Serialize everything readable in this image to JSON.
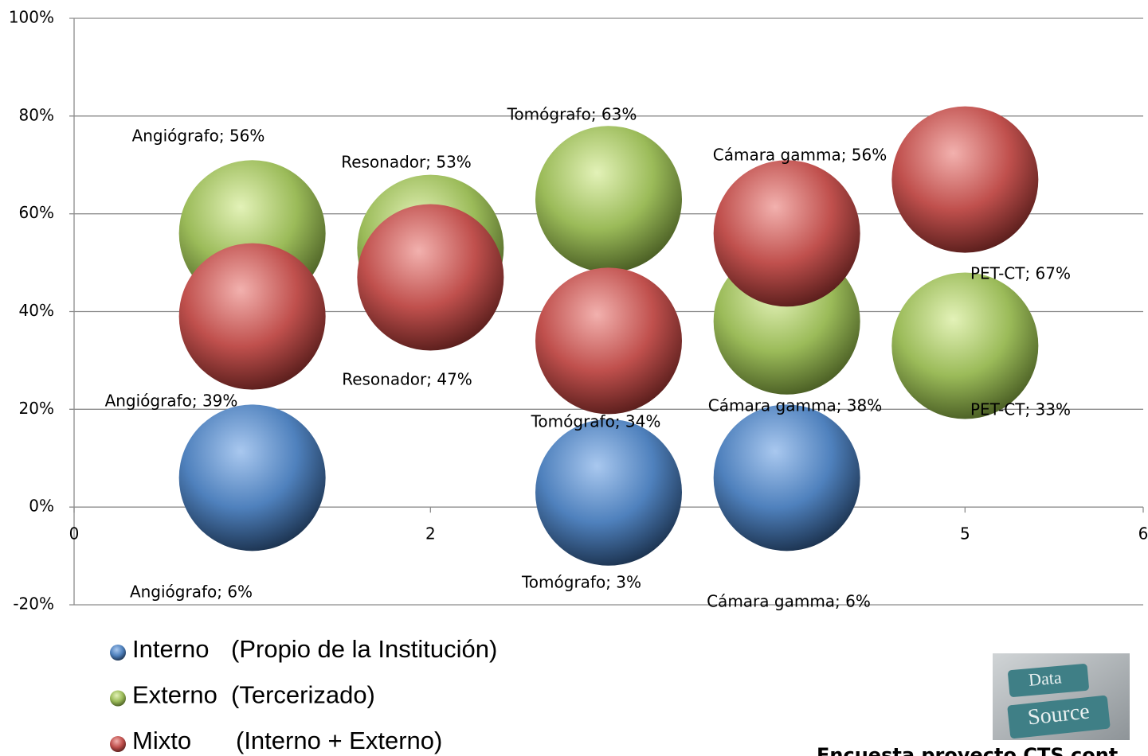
{
  "chart_data": {
    "type": "bubble",
    "xlim": [
      0,
      6
    ],
    "xticks": [
      0,
      1,
      2,
      3,
      4,
      5,
      6
    ],
    "ylim": [
      -20,
      100
    ],
    "yticks": [
      {
        "value": -20,
        "label": "-20%"
      },
      {
        "value": 0,
        "label": "0%"
      },
      {
        "value": 20,
        "label": "20%"
      },
      {
        "value": 40,
        "label": "40%"
      },
      {
        "value": 60,
        "label": "60%"
      },
      {
        "value": 80,
        "label": "80%"
      },
      {
        "value": 100,
        "label": "100%"
      }
    ],
    "grid": true,
    "series": [
      {
        "name": "Interno",
        "description": "(Propio de la Institución)",
        "color": "#4f81bd",
        "x": [
          1,
          3,
          4
        ],
        "values": [
          6,
          3,
          6
        ],
        "value_labels": [
          "Angiógrafo; 6%",
          "Tomógrafo; 3%",
          "Cámara gamma; 6%"
        ]
      },
      {
        "name": "Externo",
        "description": "(Tercerizado)",
        "color": "#9bbb59",
        "x": [
          1,
          2,
          3,
          4,
          5
        ],
        "values": [
          56,
          53,
          63,
          38,
          33
        ],
        "value_labels": [
          "Angiógrafo; 56%",
          "Resonador; 53%",
          "Tomógrafo; 63%",
          "Cámara gamma; 38%",
          "PET-CT; 33%"
        ]
      },
      {
        "name": "Mixto",
        "description": "(Interno + Externo)",
        "color": "#c0504d",
        "x": [
          1,
          2,
          3,
          4,
          5
        ],
        "values": [
          39,
          47,
          34,
          56,
          67
        ],
        "value_labels": [
          "Angiógrafo; 39%",
          "Resonador; 47%",
          "Tomógrafo; 34%",
          "Cámara gamma; 56%",
          "PET-CT; 67%"
        ]
      }
    ],
    "source_image_text": [
      "Data",
      "Source"
    ],
    "source": "Encuesta proyecto CTS cont"
  }
}
